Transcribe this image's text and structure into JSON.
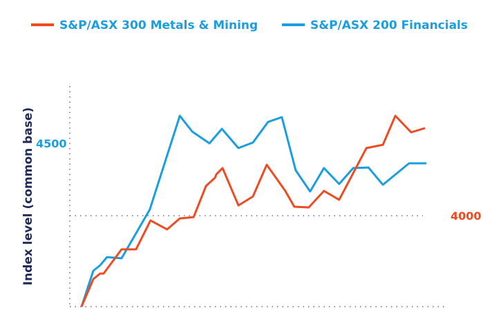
{
  "chart_data": {
    "type": "line",
    "title": "",
    "xlabel": "",
    "ylabel": "Index level (common base)",
    "xlim": [
      0,
      100
    ],
    "ylim": [
      3371,
      4720
    ],
    "grid": "dotted reference lines at 4000 and axis base",
    "legend_placement": "top",
    "y_ticks": [
      {
        "value": 4500,
        "label": "4500",
        "color": "#1a9ee0",
        "side": "left"
      },
      {
        "value": 4000,
        "label": "4000",
        "color": "#ee4b22",
        "side": "right"
      }
    ],
    "series": [
      {
        "name": "S&P/ASX 300 Metals & Mining",
        "color": "#ee4b22",
        "x": [
          0,
          3.4,
          5.4,
          6.4,
          11.6,
          15.8,
          20.0,
          24.8,
          28.5,
          32.5,
          36.1,
          38.7,
          39.1,
          40.9,
          45.5,
          49.7,
          53.7,
          59.1,
          61.7,
          65.9,
          70.3,
          74.7,
          82.6,
          87.4,
          91.0,
          95.6,
          99.6
        ],
        "y": [
          3371,
          3562,
          3600,
          3600,
          3767,
          3767,
          3967,
          3905,
          3981,
          3990,
          4205,
          4262,
          4286,
          4329,
          4071,
          4133,
          4352,
          4171,
          4062,
          4057,
          4171,
          4110,
          4467,
          4490,
          4690,
          4576,
          4605
        ]
      },
      {
        "name": "S&P/ASX 200 Financials",
        "color": "#1a9ee0",
        "x": [
          0,
          3.4,
          5.4,
          7.4,
          11.6,
          19.8,
          28.5,
          32.1,
          37.1,
          40.7,
          45.5,
          49.7,
          54.1,
          58.1,
          62.1,
          66.3,
          70.3,
          74.7,
          78.8,
          83.2,
          87.4,
          95.0,
          100
        ],
        "y": [
          3371,
          3619,
          3657,
          3714,
          3705,
          4043,
          4690,
          4581,
          4500,
          4600,
          4467,
          4505,
          4648,
          4681,
          4314,
          4167,
          4329,
          4219,
          4329,
          4333,
          4214,
          4362,
          4362
        ]
      }
    ]
  }
}
